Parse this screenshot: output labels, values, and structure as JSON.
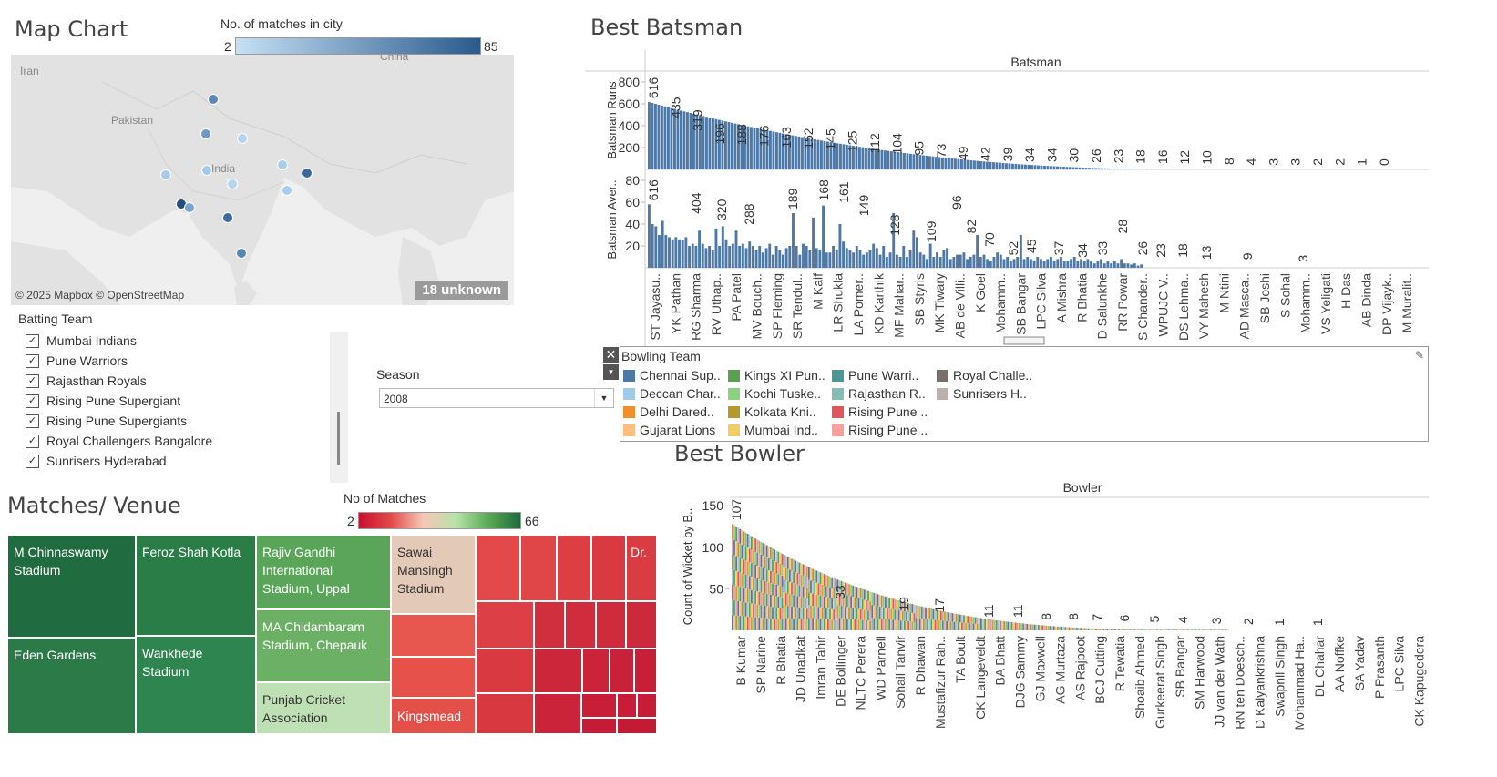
{
  "map_chart": {
    "title": "Map Chart",
    "legend_title": "No. of matches in city",
    "legend_min": "2",
    "legend_max": "85",
    "labels": [
      "Iran",
      "Pakistan",
      "India",
      "China"
    ],
    "attribution": "© 2025 Mapbox © OpenStreetMap",
    "unknown": "18 unknown",
    "colors": {
      "low": "#c6dbef",
      "high": "#2a5a8c"
    }
  },
  "batting_filter": {
    "title": "Batting Team",
    "items": [
      "Mumbai Indians",
      "Pune Warriors",
      "Rajasthan Royals",
      "Rising Pune Supergiant",
      "Rising Pune Supergiants",
      "Royal Challengers Bangalore",
      "Sunrisers Hyderabad"
    ]
  },
  "season": {
    "label": "Season",
    "value": "2008"
  },
  "best_batsman": {
    "title": "Best Batsman",
    "header": "Batsman",
    "runs_axis": "Batsman Runs",
    "avg_axis": "Batsman Aver..",
    "runs_ticks": [
      "800",
      "600",
      "400",
      "200"
    ],
    "avg_ticks": [
      "80",
      "60",
      "40",
      "20"
    ],
    "names": [
      "ST Jayasu..",
      "YK Pathan",
      "RG Sharma",
      "RV Uthap..",
      "PA Patel",
      "MV Bouch..",
      "SP Fleming",
      "SR Tendul..",
      "M Kaif",
      "LR Shukla",
      "LA Pomer..",
      "KD Karthik",
      "MF Mahar..",
      "SB Styris",
      "MK Tiwary",
      "AB de Villi..",
      "K Goel",
      "Mohamm..",
      "SB Bangar",
      "LPC Silva",
      "A Mishra",
      "R Bhatia",
      "D Salunkhe",
      "RR Powar",
      "S Chander..",
      "WPUJC V..",
      "DS Lehma..",
      "VY Mahesh",
      "M Ntini",
      "AD Masca..",
      "SB Joshi",
      "S Sohal",
      "Mohamm..",
      "VS Yeligati",
      "H Das",
      "AB Dinda",
      "DP Vijayk..",
      "M Muralit.."
    ]
  },
  "bowling_legend": {
    "title": "Bowling Team",
    "items": [
      {
        "label": "Chennai Sup..",
        "color": "#4e79a7"
      },
      {
        "label": "Deccan Char..",
        "color": "#a0cbe8"
      },
      {
        "label": "Delhi Dared..",
        "color": "#f28e2b"
      },
      {
        "label": "Gujarat Lions",
        "color": "#ffbe7d"
      },
      {
        "label": "Kings XI Pun..",
        "color": "#59a14f"
      },
      {
        "label": "Kochi Tuske..",
        "color": "#8cd17d"
      },
      {
        "label": "Kolkata Kni..",
        "color": "#b6992d"
      },
      {
        "label": "Mumbai Ind..",
        "color": "#f1ce63"
      },
      {
        "label": "Pune Warri..",
        "color": "#499894"
      },
      {
        "label": "Rajasthan R..",
        "color": "#86bcb6"
      },
      {
        "label": "Rising Pune ..",
        "color": "#e15759"
      },
      {
        "label": "Rising Pune ..",
        "color": "#ff9d9a"
      },
      {
        "label": "Royal Challe..",
        "color": "#79706e"
      },
      {
        "label": "Sunrisers H..",
        "color": "#bab0ac"
      }
    ]
  },
  "best_bowler": {
    "title": "Best Bowler",
    "header": "Bowler",
    "y_axis": "Count of Wicket by B..",
    "ticks": [
      "150",
      "100",
      "50"
    ],
    "names": [
      "B Kumar",
      "SP Narine",
      "R Bhatia",
      "JD Unadkat",
      "Imran Tahir",
      "DE Bollinger",
      "NLTC Perera",
      "WD Parnell",
      "Sohail Tanvir",
      "R Dhawan",
      "Mustafizur Rah..",
      "TA Boult",
      "CK Langeveldt",
      "BA Bhatt",
      "DJG Sammy",
      "GJ Maxwell",
      "AG Murtaza",
      "AS Rajpoot",
      "BCJ Cutting",
      "R Tewatia",
      "Shoaib Ahmed",
      "Gurkeerat Singh",
      "SB Bangar",
      "SM Harwood",
      "JJ van der Wath",
      "RN ten Doesch..",
      "D Kalyankrishna",
      "Swapnil Singh",
      "Mohammad Ha..",
      "DL Chahar",
      "AA Noffke",
      "SA Yadav",
      "P Prasanth",
      "LPC Silva",
      "CK Kapugedera"
    ]
  },
  "matches_venue": {
    "title": "Matches/ Venue",
    "legend_title": "No of Matches",
    "legend_min": "2",
    "legend_max": "66",
    "venues": [
      "M Chinnaswamy Stadium",
      "Eden Gardens",
      "Feroz Shah Kotla",
      "Wankhede Stadium",
      "Rajiv Gandhi International Stadium, Uppal",
      "MA Chidambaram Stadium, Chepauk",
      "Punjab Cricket Association",
      "Sawai Mansingh Stadium",
      "Kingsmead",
      "Dr."
    ]
  },
  "chart_data": [
    {
      "type": "bar",
      "title": "Best Batsman",
      "xlabel": "Batsman",
      "ylabel": "Batsman Runs",
      "ylim": [
        0,
        900
      ],
      "labeled_values": [
        616,
        435,
        319,
        196,
        188,
        176,
        163,
        152,
        145,
        125,
        112,
        104,
        95,
        73,
        49,
        42,
        39,
        34,
        34,
        30,
        26,
        23,
        18,
        16,
        12,
        10,
        8,
        4,
        3,
        3,
        2,
        2,
        1,
        0
      ]
    },
    {
      "type": "bar",
      "title": "Best Batsman",
      "xlabel": "Batsman",
      "ylabel": "Batsman Aver..",
      "ylim": [
        0,
        90
      ],
      "labeled_values": [
        616,
        404,
        320,
        288,
        189,
        168,
        161,
        149,
        128,
        109,
        96,
        82,
        70,
        52,
        45,
        37,
        34,
        33,
        28,
        26,
        23,
        18,
        13,
        9,
        3
      ]
    },
    {
      "type": "bar",
      "title": "Best Bowler",
      "xlabel": "Bowler",
      "ylabel": "Count of Wicket by B..",
      "ylim": [
        0,
        160
      ],
      "labeled_values": [
        107,
        33,
        19,
        17,
        11,
        11,
        8,
        8,
        7,
        6,
        5,
        4,
        3,
        2,
        1,
        1
      ]
    },
    {
      "type": "heatmap",
      "title": "Matches/ Venue",
      "legend": "No of Matches",
      "range": [
        2,
        66
      ]
    }
  ]
}
